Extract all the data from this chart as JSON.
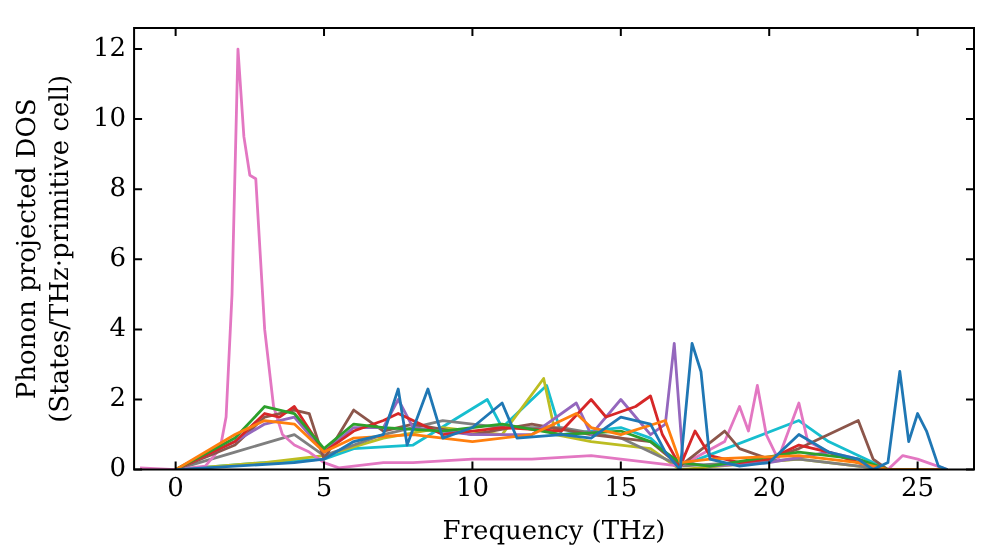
{
  "chart_data": {
    "type": "line",
    "xlabel": "Frequency (THz)",
    "ylabel": "Phonon projected DOS\n(States/THz·primitive cell)",
    "xlim": [
      -1.4,
      26.9
    ],
    "ylim": [
      0,
      12.6
    ],
    "xticks": [
      0,
      5,
      10,
      15,
      20,
      25
    ],
    "yticks": [
      0,
      2,
      4,
      6,
      8,
      10,
      12
    ],
    "grid": false,
    "legend": false,
    "marker": "none",
    "line_style": "solid",
    "series": [
      {
        "color": "#1f77b4",
        "x": [
          0,
          2,
          4,
          5,
          6,
          7,
          7.5,
          7.8,
          8.5,
          9,
          10,
          11,
          11.5,
          13,
          14,
          15,
          16,
          16.5,
          17,
          17.4,
          17.7,
          18,
          19,
          20,
          21,
          22,
          23,
          23.5,
          24,
          24.4,
          24.7,
          25,
          25.3,
          25.7,
          26
        ],
        "values": [
          0,
          0.1,
          0.2,
          0.3,
          0.8,
          1,
          2.3,
          0.7,
          2.3,
          0.9,
          1.2,
          1.9,
          0.9,
          1,
          0.9,
          1.5,
          1.3,
          0.5,
          0,
          3.6,
          2.8,
          0.3,
          0.1,
          0.2,
          1,
          0.5,
          0.3,
          0,
          0.2,
          2.8,
          0.8,
          1.6,
          1.1,
          0.1,
          0
        ]
      },
      {
        "color": "#ff7f0e",
        "x": [
          0,
          2,
          3,
          4,
          5,
          6,
          8,
          10,
          12,
          13.5,
          14,
          15,
          16.5,
          17,
          18,
          21,
          23,
          24,
          26
        ],
        "values": [
          0,
          1,
          1.4,
          1.3,
          0.5,
          0.9,
          1,
          0.8,
          1,
          1.6,
          1.2,
          1,
          1.4,
          0.2,
          0.3,
          0.4,
          0.2,
          0,
          0
        ]
      },
      {
        "color": "#2ca02c",
        "x": [
          0,
          2,
          3,
          4,
          5,
          6,
          7,
          9,
          11,
          13,
          15,
          16,
          17,
          18,
          21,
          23,
          24,
          26
        ],
        "values": [
          0,
          0.9,
          1.8,
          1.6,
          0.6,
          1.3,
          1.2,
          1.1,
          1.3,
          1,
          1.1,
          0.8,
          0.2,
          0.1,
          0.5,
          0.3,
          0,
          0
        ]
      },
      {
        "color": "#d62728",
        "x": [
          0,
          2,
          3,
          3.5,
          4,
          5,
          6,
          7,
          7.5,
          9,
          11,
          13,
          14,
          14.5,
          15.5,
          16,
          16.4,
          17,
          17.5,
          18,
          19,
          20,
          21,
          22,
          23,
          24,
          26
        ],
        "values": [
          0,
          0.8,
          1.6,
          1.5,
          1.8,
          0.5,
          1.1,
          1.4,
          1.6,
          1,
          1.2,
          1.1,
          2,
          1.5,
          1.8,
          2.1,
          1,
          0.1,
          1.1,
          0.4,
          0.2,
          0.3,
          0.7,
          0.5,
          0.2,
          0,
          0
        ]
      },
      {
        "color": "#9467bd",
        "x": [
          0,
          2,
          3,
          4,
          5,
          6,
          7,
          7.5,
          8,
          10,
          12,
          13.5,
          14,
          15,
          15.5,
          16,
          16.5,
          16.8,
          17.1,
          18,
          20,
          22,
          23,
          24,
          26
        ],
        "values": [
          0,
          0.8,
          1.3,
          1.5,
          0.5,
          1.2,
          1.2,
          2,
          1.2,
          1,
          1,
          1.9,
          1,
          2,
          1.5,
          1,
          1.3,
          3.6,
          0.2,
          0.1,
          0.2,
          0.5,
          0.2,
          0,
          0
        ]
      },
      {
        "color": "#8c564b",
        "x": [
          0,
          2,
          3,
          4,
          4.5,
          5,
          6,
          7,
          8,
          10,
          12,
          14,
          16,
          17,
          18.5,
          19,
          20,
          21,
          22,
          23,
          23.5,
          24,
          26
        ],
        "values": [
          0,
          0.7,
          1.5,
          1.7,
          1.6,
          0.3,
          1.7,
          1.1,
          1.3,
          1,
          1.3,
          1,
          0.8,
          0.1,
          1.1,
          0.6,
          0.3,
          0.6,
          1,
          1.4,
          0.3,
          0,
          0
        ]
      },
      {
        "color": "#e377c2",
        "x": [
          -1.2,
          0,
          1,
          1.5,
          1.7,
          1.9,
          2.1,
          2.3,
          2.5,
          2.7,
          3,
          3.3,
          3.6,
          4,
          4.5,
          5,
          5.5,
          6,
          7,
          8,
          10,
          12,
          14,
          16,
          17,
          18.5,
          19,
          19.3,
          19.6,
          19.9,
          20.3,
          21,
          21.3,
          22,
          23,
          23.5,
          24,
          24.5,
          25,
          26
        ],
        "values": [
          0.05,
          0,
          0.1,
          0.6,
          1.5,
          5,
          12,
          9.5,
          8.4,
          8.3,
          4,
          1.8,
          1,
          0.7,
          0.5,
          0.2,
          0.05,
          0.1,
          0.2,
          0.2,
          0.3,
          0.3,
          0.4,
          0.2,
          0.1,
          0.8,
          1.8,
          1.1,
          2.4,
          1,
          0.3,
          1.9,
          0.8,
          0.5,
          0.3,
          0.1,
          0,
          0.4,
          0.3,
          0
        ]
      },
      {
        "color": "#7f7f7f",
        "x": [
          0,
          2,
          4,
          5,
          7,
          9,
          11,
          13,
          15,
          17,
          21,
          24,
          26
        ],
        "values": [
          0,
          0.5,
          1,
          0.4,
          1,
          1.4,
          1.2,
          1.2,
          0.9,
          0.1,
          0.3,
          0,
          0
        ]
      },
      {
        "color": "#bcbd22",
        "x": [
          0,
          3,
          5,
          7,
          9,
          11,
          12.4,
          12.8,
          14,
          16,
          17,
          21,
          24,
          26
        ],
        "values": [
          0,
          0.2,
          0.4,
          0.9,
          1.2,
          1,
          2.6,
          1,
          0.8,
          0.6,
          0,
          0.3,
          0,
          0
        ]
      },
      {
        "color": "#17becf",
        "x": [
          0,
          3,
          5,
          6,
          8,
          10.5,
          11,
          12.5,
          13,
          15,
          16,
          17,
          21,
          22,
          23,
          24,
          26
        ],
        "values": [
          0,
          0.2,
          0.3,
          0.6,
          0.7,
          2,
          1.2,
          2.4,
          1,
          1.2,
          0.9,
          0.1,
          1.4,
          0.8,
          0.4,
          0,
          0
        ]
      }
    ]
  }
}
